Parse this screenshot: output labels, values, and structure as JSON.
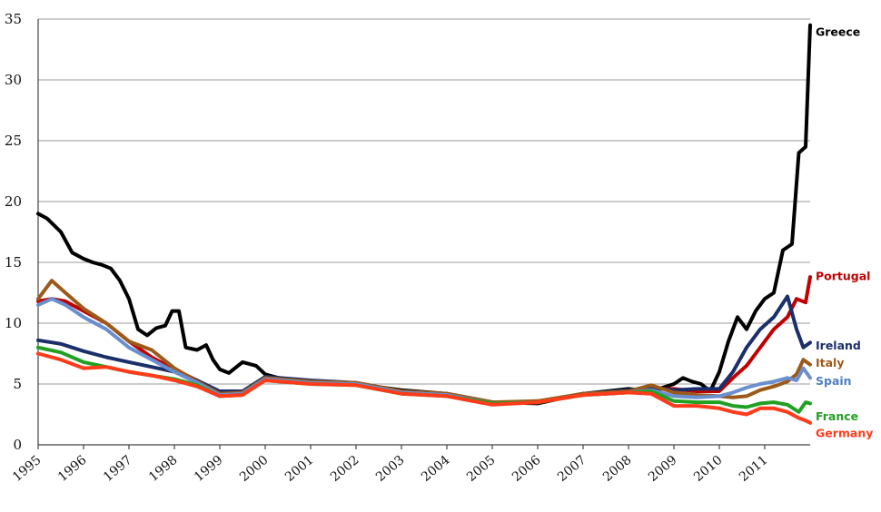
{
  "chart_data": {
    "type": "line",
    "title": "",
    "xlabel": "",
    "ylabel": "",
    "xlim": [
      1995,
      2012
    ],
    "ylim": [
      0,
      35
    ],
    "yticks": [
      0,
      5,
      10,
      15,
      20,
      25,
      30,
      35
    ],
    "xtick_labels": [
      "1995",
      "1996",
      "1997",
      "1998",
      "1999",
      "2000",
      "2001",
      "2002",
      "2003",
      "2004",
      "2005",
      "2006",
      "2007",
      "2008",
      "2009",
      "2010",
      "2011"
    ],
    "grid": true,
    "legend": "inline labels at right end of each line",
    "series": [
      {
        "name": "Greece",
        "color": "#000000",
        "x": [
          1995,
          1995.2,
          1995.5,
          1995.75,
          1996,
          1996.2,
          1996.4,
          1996.6,
          1996.8,
          1997,
          1997.2,
          1997.4,
          1997.6,
          1997.8,
          1997.95,
          1998.1,
          1998.25,
          1998.5,
          1998.7,
          1998.85,
          1999,
          1999.2,
          1999.5,
          1999.8,
          2000,
          2000.2,
          2000.5,
          2001,
          2001.5,
          2002,
          2003,
          2004,
          2005,
          2006,
          2007,
          2008,
          2008.5,
          2009,
          2009.2,
          2009.4,
          2009.6,
          2009.8,
          2010,
          2010.2,
          2010.4,
          2010.6,
          2010.8,
          2011,
          2011.2,
          2011.4,
          2011.6,
          2011.75,
          2011.9,
          2012
        ],
        "y": [
          19,
          18.6,
          17.5,
          15.8,
          15.3,
          15,
          14.8,
          14.5,
          13.5,
          12,
          9.5,
          9,
          9.6,
          9.8,
          11,
          11,
          8,
          7.8,
          8.2,
          7,
          6.2,
          5.9,
          6.8,
          6.5,
          5.8,
          5.6,
          5.3,
          5.2,
          5.1,
          5,
          4.5,
          4.2,
          3.5,
          3.4,
          4.2,
          4.6,
          4.4,
          5,
          5.5,
          5.2,
          5,
          4.4,
          6,
          8.5,
          10.5,
          9.5,
          11,
          12,
          12.5,
          16,
          16.5,
          24,
          24.5,
          34.5
        ]
      },
      {
        "name": "Portugal",
        "color": "#c00000",
        "x": [
          1995,
          1995.3,
          1995.6,
          1996,
          1996.5,
          1997,
          1997.5,
          1998,
          1998.5,
          1999,
          1999.5,
          2000,
          2001,
          2002,
          2003,
          2004,
          2005,
          2006,
          2007,
          2008,
          2008.5,
          2009,
          2009.5,
          2010,
          2010.3,
          2010.6,
          2010.9,
          2011.2,
          2011.5,
          2011.7,
          2011.9,
          2012
        ],
        "y": [
          11.8,
          12,
          11.8,
          11,
          10,
          8.5,
          7.2,
          6.2,
          5.3,
          4.2,
          4.3,
          5.5,
          5.2,
          5.1,
          4.4,
          4.2,
          3.5,
          3.5,
          4.2,
          4.4,
          4.6,
          4.6,
          4.4,
          4.4,
          5.5,
          6.5,
          8,
          9.5,
          10.5,
          12,
          11.7,
          13.8
        ]
      },
      {
        "name": "Ireland",
        "color": "#1b2f6b",
        "x": [
          1995,
          1995.5,
          1996,
          1996.5,
          1997,
          1997.5,
          1998,
          1998.5,
          1999,
          1999.5,
          2000,
          2001,
          2002,
          2003,
          2004,
          2005,
          2006,
          2007,
          2008,
          2008.5,
          2009,
          2009.5,
          2010,
          2010.3,
          2010.6,
          2010.9,
          2011.2,
          2011.5,
          2011.7,
          2011.85,
          2012
        ],
        "y": [
          8.6,
          8.3,
          7.7,
          7.2,
          6.8,
          6.4,
          6,
          5.3,
          4.4,
          4.4,
          5.6,
          5.3,
          5.1,
          4.4,
          4.2,
          3.5,
          3.5,
          4.2,
          4.5,
          4.7,
          4.5,
          4.6,
          4.6,
          6,
          8,
          9.5,
          10.5,
          12.2,
          9.5,
          8,
          8.4
        ]
      },
      {
        "name": "Italy",
        "color": "#9c5a1a",
        "x": [
          1995,
          1995.3,
          1995.6,
          1996,
          1996.5,
          1997,
          1997.5,
          1998,
          1998.5,
          1999,
          1999.5,
          2000,
          2001,
          2002,
          2003,
          2004,
          2005,
          2006,
          2007,
          2008,
          2008.5,
          2009,
          2009.5,
          2010,
          2010.3,
          2010.6,
          2010.9,
          2011.2,
          2011.5,
          2011.7,
          2011.85,
          2012
        ],
        "y": [
          12,
          13.5,
          12.5,
          11.2,
          10,
          8.5,
          7.8,
          6.3,
          5.2,
          4.2,
          4.3,
          5.5,
          5.2,
          5.1,
          4.4,
          4.2,
          3.5,
          3.6,
          4.2,
          4.4,
          4.9,
          4.3,
          4.1,
          4,
          3.9,
          4,
          4.5,
          4.8,
          5.2,
          5.8,
          7,
          6.6
        ]
      },
      {
        "name": "Spain",
        "color": "#6a8fcf",
        "x": [
          1995,
          1995.3,
          1995.6,
          1996,
          1996.5,
          1997,
          1997.5,
          1998,
          1998.5,
          1999,
          1999.5,
          2000,
          2001,
          2002,
          2003,
          2004,
          2005,
          2006,
          2007,
          2008,
          2008.5,
          2009,
          2009.5,
          2010,
          2010.3,
          2010.6,
          2010.9,
          2011.2,
          2011.5,
          2011.7,
          2011.85,
          2012
        ],
        "y": [
          11.5,
          12,
          11.5,
          10.5,
          9.5,
          8,
          7,
          6,
          5.1,
          4.1,
          4.2,
          5.4,
          5.1,
          5,
          4.3,
          4.1,
          3.4,
          3.5,
          4.1,
          4.3,
          4.5,
          4,
          3.9,
          4,
          4.3,
          4.7,
          5,
          5.2,
          5.5,
          5.3,
          6.3,
          5.5
        ]
      },
      {
        "name": "France",
        "color": "#22a022",
        "x": [
          1995,
          1995.5,
          1996,
          1996.5,
          1997,
          1997.5,
          1998,
          1998.5,
          1999,
          1999.5,
          2000,
          2001,
          2002,
          2003,
          2004,
          2005,
          2006,
          2007,
          2008,
          2008.5,
          2009,
          2009.5,
          2010,
          2010.3,
          2010.6,
          2010.9,
          2011.2,
          2011.5,
          2011.75,
          2011.9,
          2012
        ],
        "y": [
          8,
          7.6,
          6.8,
          6.4,
          6,
          5.7,
          5.4,
          4.9,
          4,
          4.1,
          5.3,
          5,
          4.9,
          4.2,
          4,
          3.4,
          3.5,
          4.1,
          4.3,
          4.4,
          3.6,
          3.5,
          3.5,
          3.2,
          3.1,
          3.4,
          3.5,
          3.3,
          2.7,
          3.5,
          3.4
        ]
      },
      {
        "name": "Germany",
        "color": "#ff3b1a",
        "x": [
          1995,
          1995.5,
          1996,
          1996.5,
          1997,
          1997.5,
          1998,
          1998.5,
          1999,
          1999.5,
          2000,
          2001,
          2002,
          2003,
          2004,
          2005,
          2006,
          2007,
          2008,
          2008.5,
          2009,
          2009.5,
          2010,
          2010.3,
          2010.6,
          2010.9,
          2011.2,
          2011.5,
          2011.75,
          2011.9,
          2012
        ],
        "y": [
          7.5,
          7,
          6.3,
          6.4,
          6,
          5.7,
          5.3,
          4.8,
          4,
          4.1,
          5.3,
          5,
          4.9,
          4.2,
          4,
          3.3,
          3.5,
          4.1,
          4.3,
          4.2,
          3.2,
          3.2,
          3,
          2.7,
          2.5,
          3,
          3,
          2.7,
          2.2,
          2,
          1.8
        ]
      }
    ],
    "line_labels": [
      {
        "text": "Greece",
        "color": "#000000",
        "y": 34
      },
      {
        "text": "Portugal",
        "color": "#c00000",
        "y": 13.9
      },
      {
        "text": "Ireland",
        "color": "#1b2f6b",
        "y": 8.2
      },
      {
        "text": "Italy",
        "color": "#9c5a1a",
        "y": 6.8
      },
      {
        "text": "Spain",
        "color": "#4f7fc7",
        "y": 5.3
      },
      {
        "text": "France",
        "color": "#22a022",
        "y": 2.4
      },
      {
        "text": "Germany",
        "color": "#ff3b1a",
        "y": 1.0
      }
    ]
  }
}
